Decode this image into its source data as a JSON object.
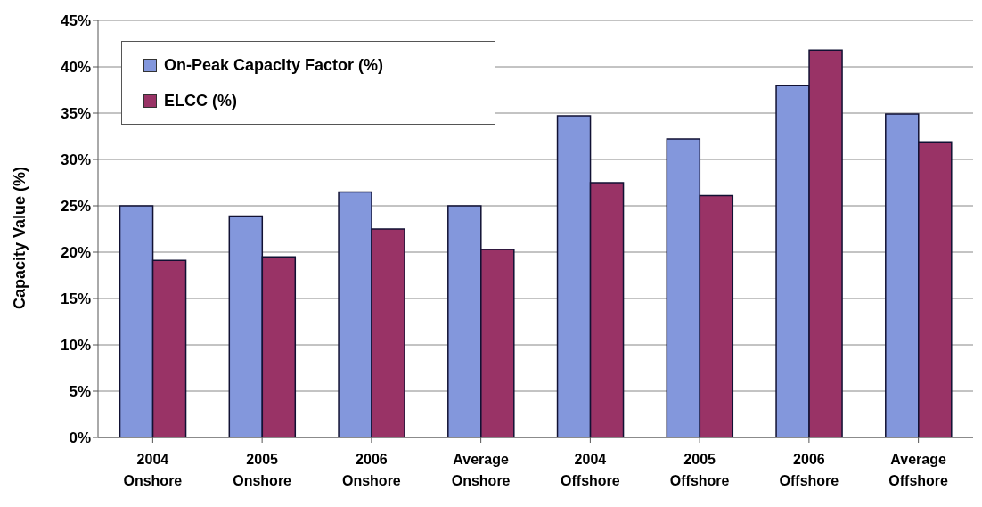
{
  "chart_data": {
    "type": "bar",
    "ylabel": "Capacity Value (%)",
    "categories": [
      "2004 Onshore",
      "2005 Onshore",
      "2006 Onshore",
      "Average Onshore",
      "2004 Offshore",
      "2005 Offshore",
      "2006 Offshore",
      "Average Offshore"
    ],
    "series": [
      {
        "name": "On-Peak Capacity Factor (%)",
        "color": "#8397dc",
        "values": [
          25.0,
          23.9,
          26.5,
          25.0,
          34.7,
          32.2,
          38.0,
          34.9
        ]
      },
      {
        "name": "ELCC (%)",
        "color": "#993366",
        "values": [
          19.1,
          19.5,
          22.5,
          20.3,
          27.5,
          26.1,
          41.8,
          31.9
        ]
      }
    ],
    "ylim": [
      0,
      45
    ],
    "yticks": [
      {
        "value": 0,
        "label": "0%"
      },
      {
        "value": 5,
        "label": "5%"
      },
      {
        "value": 10,
        "label": "10%"
      },
      {
        "value": 15,
        "label": "15%"
      },
      {
        "value": 20,
        "label": "20%"
      },
      {
        "value": 25,
        "label": "25%"
      },
      {
        "value": 30,
        "label": "30%"
      },
      {
        "value": 35,
        "label": "35%"
      },
      {
        "value": 40,
        "label": "40%"
      },
      {
        "value": 45,
        "label": "45%"
      }
    ],
    "grid": "y",
    "legend": "top left"
  }
}
